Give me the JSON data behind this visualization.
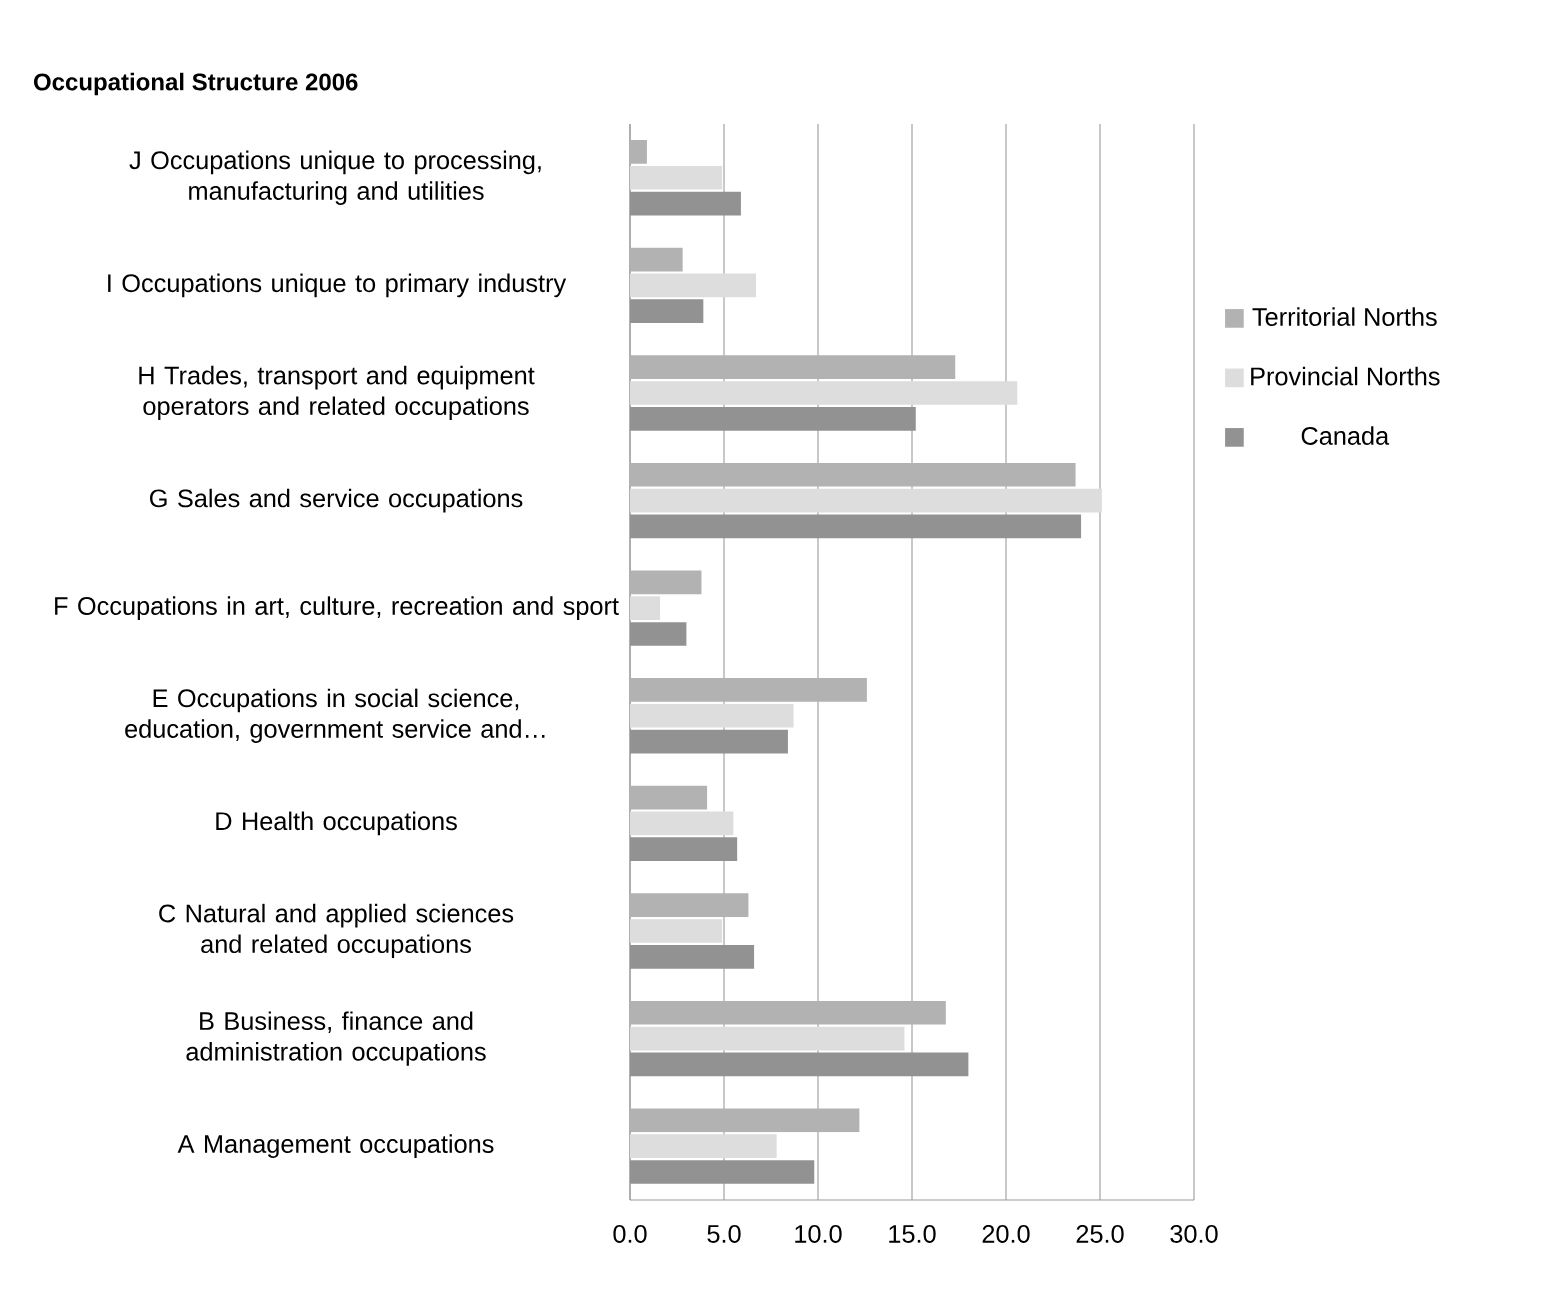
{
  "chart_data": {
    "type": "bar",
    "orientation": "horizontal",
    "title": "Occupational Structure 2006",
    "categories": [
      "J Occupations unique to processing, manufacturing and utilities",
      "I Occupations unique to primary industry",
      "H Trades, transport and equipment operators and related occupations",
      "G Sales and service occupations",
      "F Occupations in art, culture, recreation and sport",
      "E Occupations in social science, education, government service and…",
      "D Health occupations",
      "C Natural and applied sciences and related occupations",
      "B Business, finance and administration occupations",
      "A Management occupations"
    ],
    "series": [
      {
        "name": "Territorial Norths",
        "color": "#b2b2b2",
        "values": [
          0.9,
          2.8,
          17.3,
          23.7,
          3.8,
          12.6,
          4.1,
          6.3,
          16.8,
          12.2
        ]
      },
      {
        "name": "Provincial Norths",
        "color": "#dddddd",
        "values": [
          4.9,
          6.7,
          20.6,
          25.1,
          1.6,
          8.7,
          5.5,
          4.9,
          14.6,
          7.8
        ]
      },
      {
        "name": "Canada",
        "color": "#929292",
        "values": [
          5.9,
          3.9,
          15.2,
          24.0,
          3.0,
          8.4,
          5.7,
          6.6,
          18.0,
          9.8
        ]
      }
    ],
    "xlim": [
      0,
      30
    ],
    "xticks": [
      {
        "value": 0,
        "label": "0.0"
      },
      {
        "value": 5,
        "label": "5.0"
      },
      {
        "value": 10,
        "label": "10.0"
      },
      {
        "value": 15,
        "label": "15.0"
      },
      {
        "value": 20,
        "label": "20.0"
      },
      {
        "value": 25,
        "label": "25.0"
      },
      {
        "value": 30,
        "label": "30.0"
      }
    ],
    "grid": "x",
    "legend": "right"
  }
}
